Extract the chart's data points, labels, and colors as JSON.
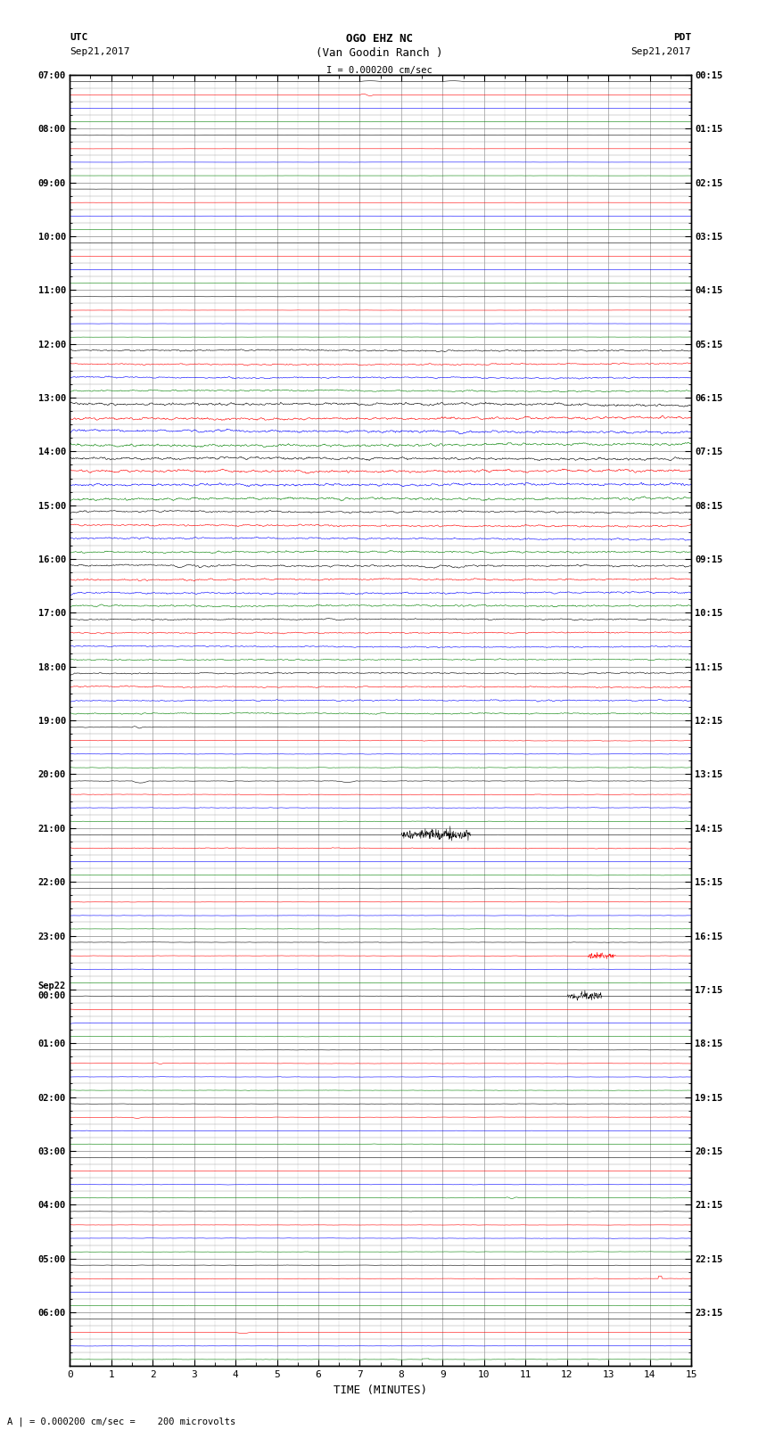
{
  "title_line1": "OGO EHZ NC",
  "title_line2": "(Van Goodin Ranch )",
  "scale_label": "I = 0.000200 cm/sec",
  "utc_label": "UTC",
  "utc_date": "Sep21,2017",
  "pdt_label": "PDT",
  "pdt_date": "Sep21,2017",
  "bottom_label": "A | = 0.000200 cm/sec =    200 microvolts",
  "xlabel": "TIME (MINUTES)",
  "left_times_utc": [
    "07:00",
    "",
    "",
    "",
    "08:00",
    "",
    "",
    "",
    "09:00",
    "",
    "",
    "",
    "10:00",
    "",
    "",
    "",
    "11:00",
    "",
    "",
    "",
    "12:00",
    "",
    "",
    "",
    "13:00",
    "",
    "",
    "",
    "14:00",
    "",
    "",
    "",
    "15:00",
    "",
    "",
    "",
    "16:00",
    "",
    "",
    "",
    "17:00",
    "",
    "",
    "",
    "18:00",
    "",
    "",
    "",
    "19:00",
    "",
    "",
    "",
    "20:00",
    "",
    "",
    "",
    "21:00",
    "",
    "",
    "",
    "22:00",
    "",
    "",
    "",
    "23:00",
    "",
    "",
    "",
    "Sep22\n00:00",
    "",
    "",
    "",
    "01:00",
    "",
    "",
    "",
    "02:00",
    "",
    "",
    "",
    "03:00",
    "",
    "",
    "",
    "04:00",
    "",
    "",
    "",
    "05:00",
    "",
    "",
    "",
    "06:00",
    "",
    "",
    ""
  ],
  "right_times_pdt": [
    "00:15",
    "",
    "",
    "",
    "01:15",
    "",
    "",
    "",
    "02:15",
    "",
    "",
    "",
    "03:15",
    "",
    "",
    "",
    "04:15",
    "",
    "",
    "",
    "05:15",
    "",
    "",
    "",
    "06:15",
    "",
    "",
    "",
    "07:15",
    "",
    "",
    "",
    "08:15",
    "",
    "",
    "",
    "09:15",
    "",
    "",
    "",
    "10:15",
    "",
    "",
    "",
    "11:15",
    "",
    "",
    "",
    "12:15",
    "",
    "",
    "",
    "13:15",
    "",
    "",
    "",
    "14:15",
    "",
    "",
    "",
    "15:15",
    "",
    "",
    "",
    "16:15",
    "",
    "",
    "",
    "17:15",
    "",
    "",
    "",
    "18:15",
    "",
    "",
    "",
    "19:15",
    "",
    "",
    "",
    "20:15",
    "",
    "",
    "",
    "21:15",
    "",
    "",
    "",
    "22:15",
    "",
    "",
    "",
    "23:15",
    "",
    "",
    ""
  ],
  "num_rows": 96,
  "xmin": 0,
  "xmax": 15,
  "xticks": [
    0,
    1,
    2,
    3,
    4,
    5,
    6,
    7,
    8,
    9,
    10,
    11,
    12,
    13,
    14,
    15
  ],
  "colors_cycle": [
    "black",
    "red",
    "blue",
    "green"
  ],
  "bg_color": "white",
  "grid_color": "#999999",
  "axes_color": "black",
  "fig_width": 8.5,
  "fig_height": 16.13,
  "dpi": 100
}
